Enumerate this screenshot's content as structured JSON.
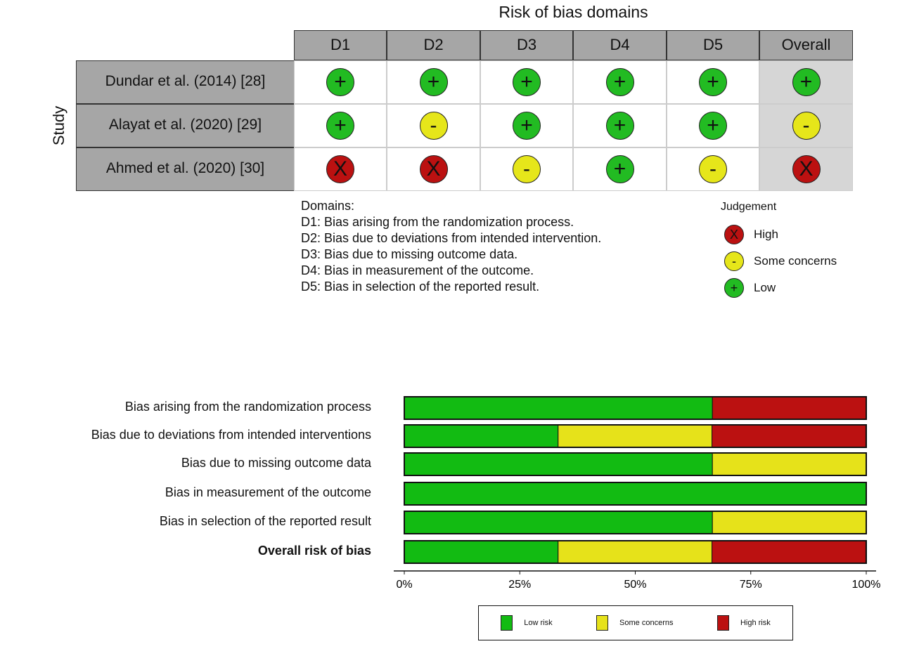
{
  "traffic_light": {
    "title": "Risk of bias domains",
    "ylabel": "Study",
    "columns": [
      "D1",
      "D2",
      "D3",
      "D4",
      "D5",
      "Overall"
    ],
    "studies": [
      {
        "name": "Dundar et al. (2014) [28]",
        "judgements": [
          "low",
          "low",
          "low",
          "low",
          "low",
          "low"
        ]
      },
      {
        "name": "Alayat et al. (2020) [29]",
        "judgements": [
          "low",
          "some",
          "low",
          "low",
          "low",
          "some"
        ]
      },
      {
        "name": "Ahmed et al. (2020) [30]",
        "judgements": [
          "high",
          "high",
          "some",
          "low",
          "some",
          "high"
        ]
      }
    ],
    "symbols": {
      "low": "+",
      "some": "-",
      "high": "X"
    },
    "colors": {
      "low": "#22bb22",
      "some": "#e6e61a",
      "high": "#bb1111"
    },
    "domains_heading": "Domains:",
    "domains": [
      "D1: Bias arising from the randomization process.",
      "D2: Bias due to deviations from intended intervention.",
      "D3: Bias due to missing outcome data.",
      "D4: Bias in measurement of the outcome.",
      "D5: Bias in selection of the reported result."
    ],
    "judgement_heading": "Judgement",
    "judgement_legend": [
      {
        "key": "high",
        "label": "High"
      },
      {
        "key": "some",
        "label": "Some concerns"
      },
      {
        "key": "low",
        "label": "Low"
      }
    ]
  },
  "chart_data": {
    "type": "bar",
    "orientation": "horizontal-stacked",
    "categories": [
      "Bias arising from the randomization process",
      "Bias due to deviations from intended  interventions",
      "Bias due to missing outcome data",
      "Bias in measurement of the outcome",
      "Bias in selection of the reported  result",
      "Overall risk of bias"
    ],
    "series": [
      {
        "name": "Low risk",
        "color": "#12bb12",
        "values": [
          66.7,
          33.3,
          66.7,
          100,
          66.7,
          33.3
        ]
      },
      {
        "name": "Some concerns",
        "color": "#e6e21a",
        "values": [
          0,
          33.3,
          33.3,
          0,
          33.3,
          33.3
        ]
      },
      {
        "name": "High risk",
        "color": "#bb1111",
        "values": [
          33.3,
          33.3,
          0,
          0,
          0,
          33.3
        ]
      }
    ],
    "xlim": [
      0,
      100
    ],
    "xticks": [
      "0%",
      "25%",
      "50%",
      "75%",
      "100%"
    ],
    "legend_position": "bottom"
  }
}
